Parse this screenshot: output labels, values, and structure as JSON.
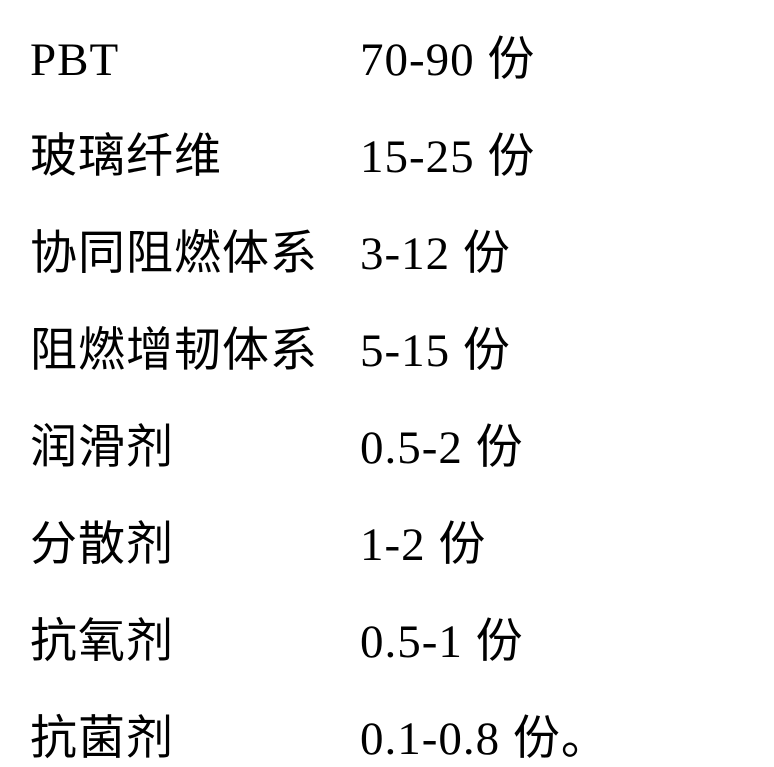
{
  "table": {
    "font_family": "SimSun",
    "font_size_pt": 35,
    "text_color": "#000000",
    "background_color": "#ffffff",
    "rows": [
      {
        "label": "PBT",
        "value": "70-90 份"
      },
      {
        "label": "玻璃纤维",
        "value": "15-25 份"
      },
      {
        "label": "协同阻燃体系",
        "value": "3-12 份"
      },
      {
        "label": "阻燃增韧体系",
        "value": "5-15 份"
      },
      {
        "label": "润滑剂",
        "value": "0.5-2 份"
      },
      {
        "label": "分散剂",
        "value": "1-2 份"
      },
      {
        "label": "抗氧剂",
        "value": "0.5-1 份"
      },
      {
        "label": "抗菌剂",
        "value": "0.1-0.8 份。"
      }
    ]
  }
}
